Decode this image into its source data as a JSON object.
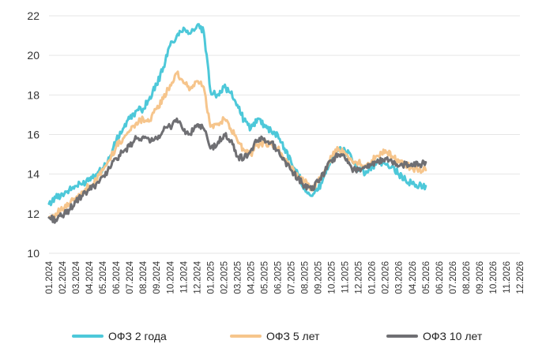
{
  "colors": {
    "ofz2": "#4dc8d9",
    "ofz5": "#f6c58c",
    "ofz10": "#6f6f73",
    "grid": "#e6e6e6"
  },
  "legend": [
    {
      "label": "ОФЗ 2 года",
      "color": "#4dc8d9"
    },
    {
      "label": "ОФЗ 5 лет",
      "color": "#f6c58c"
    },
    {
      "label": "ОФЗ 10 лет",
      "color": "#6f6f73"
    }
  ],
  "chart_data": {
    "type": "line",
    "title": "",
    "xlabel": "",
    "ylabel": "",
    "ylim": [
      10,
      22
    ],
    "yticks": [
      "10",
      "12",
      "14",
      "16",
      "18",
      "20",
      "22"
    ],
    "grid": "horizontal",
    "legend_position": "bottom",
    "x_ticks": [
      "01.2024",
      "02.2024",
      "03.2024",
      "04.2024",
      "05.2024",
      "06.2024",
      "07.2024",
      "08.2024",
      "09.2024",
      "10.2024",
      "11.2024",
      "12.2024",
      "01.2025",
      "02.2025",
      "03.2025",
      "04.2025",
      "05.2025",
      "06.2025",
      "07.2025",
      "08.2025",
      "09.2025",
      "10.2025",
      "11.2025",
      "12.2025",
      "01.2026",
      "02.2026",
      "03.2026",
      "04.2026",
      "05.2026",
      "06.2026",
      "07.2026",
      "08.2026",
      "09.2026",
      "10.2026",
      "11.2026",
      "12.2026"
    ],
    "x": [
      "01.2024",
      "01.2024",
      "02.2024",
      "02.2024",
      "03.2024",
      "03.2024",
      "04.2024",
      "04.2024",
      "05.2024",
      "05.2024",
      "06.2024",
      "06.2024",
      "07.2024",
      "07.2024",
      "08.2024",
      "08.2024",
      "09.2024",
      "09.2024",
      "10.2024",
      "10.2024",
      "11.2024",
      "11.2024",
      "12.2024",
      "12.2024",
      "01.2025",
      "01.2025",
      "02.2025",
      "02.2025",
      "03.2025",
      "03.2025",
      "04.2025",
      "04.2025",
      "05.2025",
      "05.2025",
      "06.2025",
      "06.2025",
      "07.2025",
      "07.2025",
      "08.2025",
      "08.2025",
      "09.2025",
      "09.2025",
      "10.2025",
      "10.2025",
      "11.2025",
      "11.2025",
      "12.2025",
      "12.2025",
      "01.2026",
      "01.2026",
      "02.2026",
      "02.2026",
      "03.2026",
      "03.2026",
      "04.2026",
      "04.2026",
      "05.2026"
    ],
    "series": [
      {
        "name": "ОФЗ 2 года",
        "values": [
          12.5,
          12.8,
          13.0,
          13.2,
          13.4,
          13.5,
          13.8,
          14.0,
          14.3,
          14.8,
          15.7,
          16.3,
          16.8,
          17.2,
          17.3,
          17.9,
          18.5,
          19.4,
          20.5,
          21.0,
          21.4,
          21.1,
          21.5,
          21.2,
          18.2,
          18.0,
          18.4,
          18.1,
          17.5,
          16.7,
          16.3,
          16.8,
          16.5,
          16.2,
          16.0,
          15.3,
          14.6,
          14.0,
          13.3,
          12.9,
          13.2,
          14.0,
          14.8,
          15.2,
          15.2,
          14.8,
          14.2,
          14.0,
          14.4,
          14.6,
          14.5,
          14.4,
          14.0,
          13.7,
          13.5,
          13.4,
          13.4
        ]
      },
      {
        "name": "ОФЗ 5 лет",
        "values": [
          11.8,
          12.0,
          12.2,
          12.5,
          12.8,
          13.1,
          13.4,
          13.7,
          14.2,
          14.7,
          15.4,
          15.8,
          16.2,
          16.6,
          16.8,
          16.7,
          17.3,
          17.8,
          18.5,
          19.1,
          18.6,
          18.3,
          18.7,
          18.4,
          16.4,
          16.5,
          16.8,
          16.3,
          15.7,
          15.2,
          15.0,
          15.5,
          15.6,
          15.5,
          15.3,
          14.8,
          14.3,
          13.9,
          13.6,
          13.3,
          13.6,
          14.2,
          14.9,
          15.3,
          15.0,
          14.7,
          14.6,
          14.4,
          14.7,
          14.9,
          15.2,
          14.9,
          14.6,
          14.5,
          14.3,
          14.2,
          14.2
        ]
      },
      {
        "name": "ОФЗ 10 лет",
        "values": [
          11.8,
          11.7,
          11.9,
          12.2,
          12.6,
          12.9,
          13.2,
          13.5,
          13.9,
          14.3,
          14.8,
          15.1,
          15.4,
          15.8,
          15.9,
          15.6,
          15.8,
          16.2,
          16.4,
          16.8,
          16.2,
          16.0,
          16.5,
          16.3,
          15.3,
          15.5,
          16.0,
          15.7,
          14.9,
          14.8,
          15.2,
          15.7,
          15.8,
          15.6,
          15.2,
          14.7,
          14.2,
          13.8,
          13.4,
          13.2,
          13.6,
          14.1,
          14.7,
          15.0,
          14.8,
          14.3,
          14.2,
          14.4,
          14.5,
          14.6,
          14.8,
          14.6,
          14.4,
          14.5,
          14.4,
          14.5,
          14.6
        ]
      }
    ]
  }
}
